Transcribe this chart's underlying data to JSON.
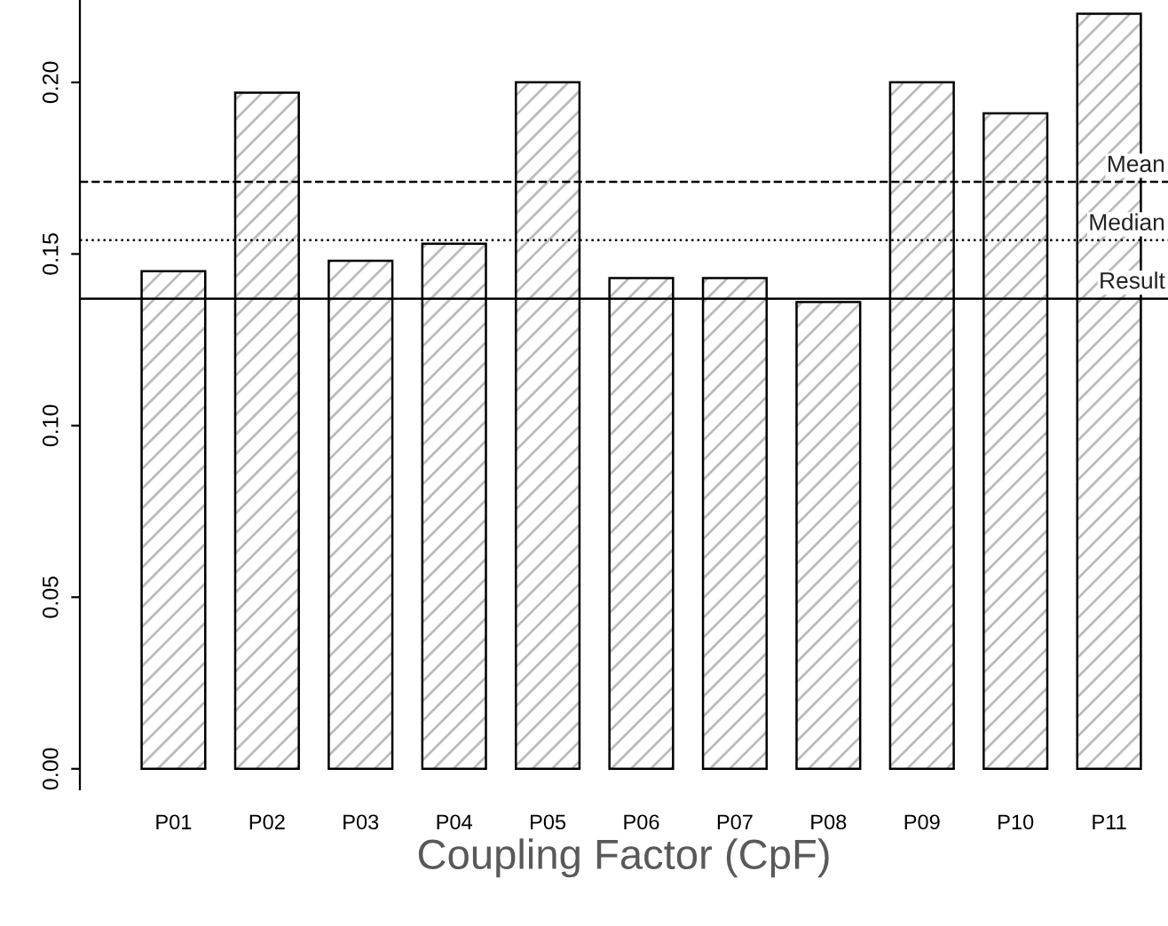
{
  "chart_data": {
    "type": "bar",
    "xlabel": "Coupling Factor (CpF)",
    "categories": [
      "P01",
      "P02",
      "P03",
      "P04",
      "P05",
      "P06",
      "P07",
      "P08",
      "P09",
      "P10",
      "P11"
    ],
    "values": [
      0.145,
      0.197,
      0.148,
      0.153,
      0.2,
      0.143,
      0.143,
      0.136,
      0.2,
      0.191,
      0.22
    ],
    "color": "#000000",
    "ylim": [
      -0.006,
      0.224
    ],
    "yticks": [
      {
        "value": 0,
        "label": "0.00"
      },
      {
        "value": 0.05,
        "label": "0.05"
      },
      {
        "value": 0.1,
        "label": "0.10"
      },
      {
        "value": 0.15,
        "label": "0.15"
      },
      {
        "value": 0.2,
        "label": "0.20"
      }
    ],
    "ref_lines": [
      {
        "axis": "y",
        "value": 0.171,
        "label": "Mean",
        "line_style": "dashed",
        "color": "#000000"
      },
      {
        "axis": "y",
        "value": 0.154,
        "label": "Median",
        "line_style": "dotted",
        "color": "#000000"
      },
      {
        "axis": "y",
        "value": 0.137,
        "label": "Result",
        "line_style": "solid",
        "color": "#000000"
      }
    ],
    "grid": false,
    "legend": false
  }
}
